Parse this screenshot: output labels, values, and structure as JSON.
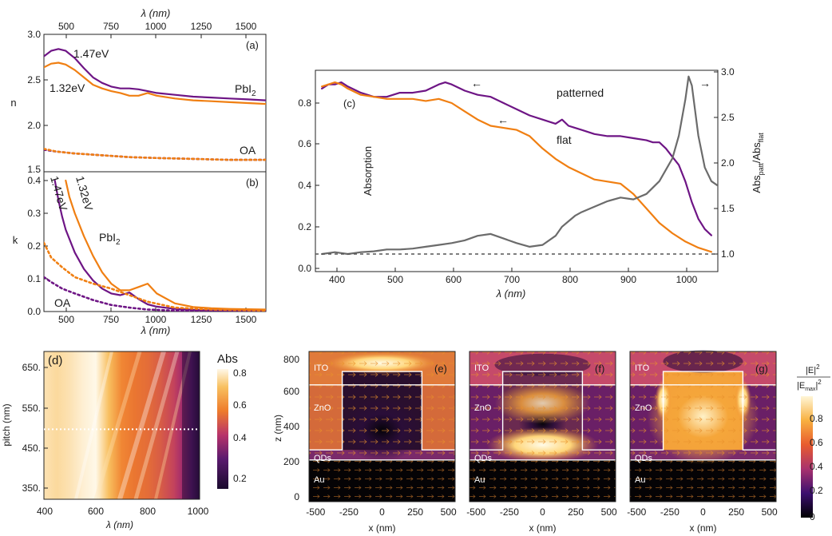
{
  "colors": {
    "purple": "#6e1585",
    "orange": "#f07f12",
    "gray": "#6b6b6b",
    "dash": "#555555"
  },
  "panel_a": {
    "label": "(a)",
    "top_axis_label": "λ (nm)",
    "top_ticks": [
      "500",
      "750",
      "1000",
      "1250",
      "1500"
    ],
    "y_label": "n",
    "y_ticks": [
      "1.5",
      "2.0",
      "2.5",
      "3.0"
    ],
    "annotations": {
      "e147": "1.47eV",
      "e132": "1.32eV",
      "pbi_main": "PbI",
      "pbi_sub": "2",
      "oa": "OA"
    }
  },
  "panel_b": {
    "label": "(b)",
    "y_label": "k",
    "y_ticks": [
      "0.0",
      "0.1",
      "0.2",
      "0.3",
      "0.4"
    ],
    "x_ticks": [
      "500",
      "750",
      "1000",
      "1250",
      "1500"
    ],
    "x_label": "λ (nm)",
    "annotations": {
      "e147": "1.47eV",
      "e132": "1.32eV",
      "pbi_main": "PbI",
      "pbi_sub": "2",
      "oa": "OA"
    }
  },
  "panel_c": {
    "label": "(c)",
    "x_label": "λ (nm)",
    "x_ticks": [
      "400",
      "500",
      "600",
      "700",
      "800",
      "900",
      "1000"
    ],
    "y_label": "Absorption",
    "y_ticks": [
      "0.0",
      "0.2",
      "0.4",
      "0.6",
      "0.8"
    ],
    "y2_ticks": [
      "1.0",
      "1.5",
      "2.0",
      "2.5",
      "3.0"
    ],
    "y2_label_main": "Abs",
    "y2_label_sub1": "patt",
    "y2_label_mid": "/Abs",
    "y2_label_sub2": "flat",
    "patterned_label": "patterned",
    "flat_label": "flat",
    "arrow_left": "←",
    "arrow_right": "→"
  },
  "panel_d": {
    "label": "(d)",
    "x_label": "λ (nm)",
    "x_ticks": [
      "400",
      "600",
      "800",
      "1000"
    ],
    "y_label": "pitch (nm)",
    "y_ticks": [
      "350.",
      "450.",
      "550.",
      "650."
    ],
    "colorbar_title": "Abs",
    "colorbar_ticks": [
      "0.2",
      "0.4",
      "0.6",
      "0.8"
    ]
  },
  "panels_efg": {
    "labels": [
      "(e)",
      "(f)",
      "(g)"
    ],
    "x_label": "x (nm)",
    "x_ticks": [
      "-500",
      "-250",
      "0",
      "250",
      "500"
    ],
    "y_label": "z (nm)",
    "y_ticks": [
      "0",
      "200",
      "400",
      "600",
      "800"
    ],
    "layers": [
      "ITO",
      "ZnO",
      "QDs",
      "Au"
    ],
    "colorbar_ticks": [
      "0",
      "0.2",
      "0.4",
      "0.6",
      "0.8"
    ],
    "colorbar_title_top": "|E|",
    "colorbar_title_bottom": "|E",
    "colorbar_title_sub": "max",
    "colorbar_exp": "2"
  },
  "chart_data": [
    {
      "type": "line",
      "panel": "a",
      "xlabel": "λ (nm)",
      "ylabel": "n",
      "xlim": [
        380,
        1600
      ],
      "ylim": [
        1.5,
        3.0
      ],
      "series": [
        {
          "name": "PbI2 1.47eV",
          "x": [
            380,
            420,
            460,
            500,
            550,
            600,
            650,
            700,
            750,
            800,
            850,
            900,
            950,
            1000,
            1100,
            1200,
            1300,
            1400,
            1500,
            1600
          ],
          "y": [
            2.76,
            2.82,
            2.84,
            2.82,
            2.74,
            2.63,
            2.53,
            2.47,
            2.43,
            2.41,
            2.41,
            2.4,
            2.38,
            2.36,
            2.34,
            2.32,
            2.31,
            2.3,
            2.29,
            2.28
          ]
        },
        {
          "name": "PbI2 1.32eV",
          "x": [
            380,
            420,
            460,
            500,
            550,
            600,
            650,
            700,
            750,
            800,
            850,
            900,
            950,
            1000,
            1100,
            1200,
            1300,
            1400,
            1500,
            1600
          ],
          "y": [
            2.64,
            2.68,
            2.69,
            2.67,
            2.61,
            2.53,
            2.45,
            2.41,
            2.38,
            2.36,
            2.33,
            2.33,
            2.36,
            2.33,
            2.3,
            2.28,
            2.27,
            2.26,
            2.25,
            2.24
          ]
        },
        {
          "name": "OA 1.47eV",
          "x": [
            380,
            450,
            550,
            700,
            850,
            1000,
            1200,
            1400,
            1600
          ],
          "y": [
            1.74,
            1.72,
            1.7,
            1.68,
            1.66,
            1.65,
            1.64,
            1.63,
            1.63
          ]
        },
        {
          "name": "OA 1.32eV",
          "x": [
            380,
            450,
            550,
            700,
            850,
            1000,
            1200,
            1400,
            1600
          ],
          "y": [
            1.75,
            1.72,
            1.7,
            1.68,
            1.66,
            1.65,
            1.64,
            1.63,
            1.63
          ]
        }
      ]
    },
    {
      "type": "line",
      "panel": "b",
      "xlabel": "λ (nm)",
      "ylabel": "k",
      "xlim": [
        380,
        1600
      ],
      "ylim": [
        0,
        0.4
      ],
      "series": [
        {
          "name": "PbI2 1.47eV",
          "x": [
            440,
            460,
            480,
            500,
            550,
            600,
            650,
            700,
            750,
            800,
            850,
            900,
            950,
            1000,
            1100,
            1200,
            1300,
            1400,
            1500,
            1600
          ],
          "y": [
            0.4,
            0.34,
            0.29,
            0.25,
            0.18,
            0.13,
            0.095,
            0.07,
            0.055,
            0.05,
            0.058,
            0.038,
            0.022,
            0.015,
            0.008,
            0.005,
            0.004,
            0.003,
            0.003,
            0.002
          ]
        },
        {
          "name": "PbI2 1.32eV",
          "x": [
            500,
            520,
            550,
            600,
            650,
            700,
            750,
            800,
            850,
            900,
            950,
            1000,
            1100,
            1200,
            1300,
            1400,
            1500,
            1600
          ],
          "y": [
            0.4,
            0.35,
            0.3,
            0.23,
            0.17,
            0.12,
            0.085,
            0.065,
            0.065,
            0.075,
            0.085,
            0.055,
            0.025,
            0.014,
            0.01,
            0.008,
            0.007,
            0.006
          ]
        },
        {
          "name": "OA 1.47eV",
          "x": [
            380,
            420,
            480,
            550,
            650,
            750,
            850,
            950,
            1100,
            1300,
            1600
          ],
          "y": [
            0.105,
            0.09,
            0.07,
            0.055,
            0.035,
            0.02,
            0.012,
            0.006,
            0.003,
            0.002,
            0.001
          ]
        },
        {
          "name": "OA 1.32eV",
          "x": [
            380,
            420,
            480,
            550,
            650,
            750,
            850,
            950,
            1100,
            1300,
            1600
          ],
          "y": [
            0.21,
            0.165,
            0.135,
            0.105,
            0.085,
            0.07,
            0.05,
            0.03,
            0.012,
            0.006,
            0.003
          ]
        }
      ]
    },
    {
      "type": "line",
      "panel": "c",
      "xlabel": "λ (nm)",
      "ylabel": "Absorption",
      "xlim": [
        390,
        1010
      ],
      "ylim": [
        0,
        0.9
      ],
      "y2lim": [
        0.9,
        3.0
      ],
      "series": [
        {
          "name": "patterned",
          "axis": "left",
          "x": [
            400,
            410,
            420,
            430,
            440,
            460,
            480,
            500,
            520,
            540,
            560,
            580,
            590,
            600,
            620,
            640,
            660,
            680,
            700,
            720,
            740,
            760,
            770,
            780,
            790,
            800,
            820,
            840,
            860,
            880,
            900,
            910,
            920,
            930,
            940,
            950,
            960,
            970,
            980,
            990,
            1000
          ],
          "y": [
            0.87,
            0.89,
            0.89,
            0.9,
            0.88,
            0.85,
            0.83,
            0.83,
            0.85,
            0.85,
            0.86,
            0.89,
            0.9,
            0.89,
            0.86,
            0.84,
            0.83,
            0.8,
            0.77,
            0.74,
            0.72,
            0.7,
            0.72,
            0.69,
            0.68,
            0.67,
            0.65,
            0.64,
            0.64,
            0.63,
            0.62,
            0.61,
            0.61,
            0.58,
            0.54,
            0.5,
            0.42,
            0.32,
            0.24,
            0.19,
            0.16
          ]
        },
        {
          "name": "flat",
          "axis": "left",
          "x": [
            400,
            410,
            420,
            430,
            440,
            460,
            480,
            500,
            520,
            540,
            560,
            580,
            600,
            620,
            640,
            660,
            680,
            700,
            720,
            740,
            760,
            780,
            800,
            820,
            840,
            860,
            880,
            900,
            920,
            940,
            960,
            980,
            1000
          ],
          "y": [
            0.88,
            0.89,
            0.9,
            0.89,
            0.87,
            0.84,
            0.83,
            0.82,
            0.82,
            0.82,
            0.81,
            0.82,
            0.8,
            0.76,
            0.72,
            0.69,
            0.68,
            0.67,
            0.64,
            0.58,
            0.53,
            0.49,
            0.46,
            0.43,
            0.42,
            0.41,
            0.36,
            0.29,
            0.22,
            0.17,
            0.13,
            0.1,
            0.08
          ]
        },
        {
          "name": "ratio",
          "axis": "right",
          "x": [
            400,
            420,
            440,
            460,
            480,
            500,
            520,
            540,
            560,
            580,
            600,
            620,
            640,
            660,
            680,
            700,
            720,
            740,
            760,
            770,
            780,
            790,
            800,
            820,
            840,
            860,
            880,
            900,
            920,
            940,
            950,
            960,
            965,
            970,
            980,
            990,
            1000,
            1010
          ],
          "y": [
            1.0,
            1.02,
            1.0,
            1.02,
            1.03,
            1.05,
            1.05,
            1.06,
            1.08,
            1.1,
            1.12,
            1.15,
            1.2,
            1.22,
            1.17,
            1.12,
            1.08,
            1.1,
            1.2,
            1.3,
            1.36,
            1.42,
            1.46,
            1.52,
            1.58,
            1.62,
            1.6,
            1.66,
            1.8,
            2.05,
            2.3,
            2.7,
            2.95,
            2.85,
            2.3,
            1.95,
            1.8,
            1.75
          ]
        },
        {
          "name": "reference",
          "axis": "right",
          "x": [
            390,
            1010
          ],
          "y": [
            1.0,
            1.0
          ]
        }
      ]
    },
    {
      "type": "heatmap",
      "panel": "d",
      "xlabel": "λ (nm)",
      "ylabel": "pitch (nm)",
      "xlim": [
        400,
        1000
      ],
      "ylim": [
        320,
        700
      ],
      "colorbar": "Abs",
      "clim": [
        0.1,
        0.95
      ],
      "marker_pitch": 500,
      "column_profile": {
        "x": [
          400,
          450,
          500,
          550,
          600,
          650,
          700,
          750,
          800,
          850,
          900,
          930,
          950,
          970,
          990,
          1000
        ],
        "abs": [
          0.9,
          0.88,
          0.9,
          0.93,
          0.95,
          0.82,
          0.68,
          0.64,
          0.62,
          0.58,
          0.52,
          0.45,
          0.38,
          0.3,
          0.18,
          0.12
        ]
      }
    },
    {
      "type": "heatmap",
      "panel": "e-g",
      "xlabel": "x (nm)",
      "ylabel": "z (nm)",
      "xlim": [
        -550,
        550
      ],
      "ylim": [
        -50,
        850
      ],
      "colorbar": "|E|^2/|Emax|^2",
      "clim": [
        0,
        1
      ],
      "layer_boundaries_z": {
        "Au_top": 200,
        "QDs_top": 260,
        "ZnO_top": 650
      },
      "pillar_x": [
        -300,
        300
      ],
      "pillar_top_z": 730
    }
  ]
}
